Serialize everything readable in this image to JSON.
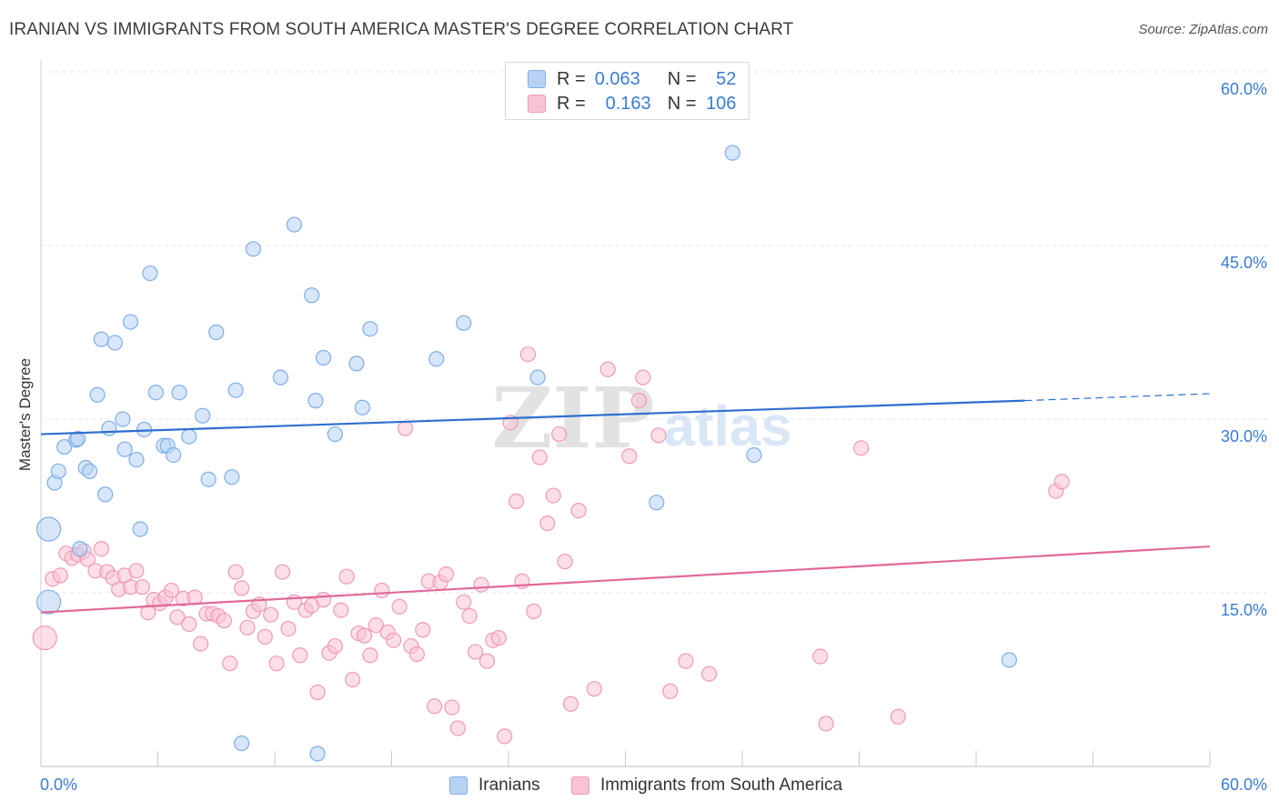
{
  "header": {
    "title": "IRANIAN VS IMMIGRANTS FROM SOUTH AMERICA MASTER'S DEGREE CORRELATION CHART",
    "source": "Source: ZipAtlas.com"
  },
  "watermark": {
    "zip": "ZIP",
    "atlas": "atlas"
  },
  "legend": {
    "series1": {
      "r_label": "R =",
      "r_value": "0.063",
      "n_label": "N =",
      "n_value": "52"
    },
    "series2": {
      "r_label": "R =",
      "r_value": "0.163",
      "n_label": "N =",
      "n_value": "106"
    }
  },
  "colors": {
    "blue_fill": "#b8d2f4",
    "blue_stroke": "#7eaee6",
    "blue_line": "#2f6fcf",
    "pink_fill": "#f9c3d4",
    "pink_stroke": "#ef9ab5",
    "pink_line": "#e0699a",
    "tick_text": "#3a7bd5",
    "grid": "#e3e3e3"
  },
  "chart_data": {
    "type": "scatter",
    "title": "IRANIAN VS IMMIGRANTS FROM SOUTH AMERICA MASTER'S DEGREE CORRELATION CHART",
    "xlabel": "",
    "ylabel": "Master's Degree",
    "xlim": [
      0,
      60
    ],
    "ylim": [
      0,
      60
    ],
    "x_tick_labels": [
      "0.0%",
      "60.0%"
    ],
    "y_tick_labels": [
      "15.0%",
      "30.0%",
      "45.0%",
      "60.0%"
    ],
    "y_ticks": [
      15,
      30,
      45,
      60
    ],
    "grid": true,
    "legend_position": "top-center",
    "series": [
      {
        "name": "Iranians",
        "R": 0.063,
        "N": 52,
        "trend": {
          "x": [
            0,
            50.5
          ],
          "y": [
            28.7,
            31.6
          ]
        },
        "trend_dashed": {
          "x": [
            50.5,
            60
          ],
          "y": [
            31.6,
            32.2
          ]
        },
        "points": [
          [
            0.4,
            14.2
          ],
          [
            0.4,
            20.5
          ],
          [
            0.7,
            24.5
          ],
          [
            0.9,
            25.5
          ],
          [
            1.2,
            27.6
          ],
          [
            1.8,
            28.2
          ],
          [
            1.9,
            28.3
          ],
          [
            2.3,
            25.8
          ],
          [
            2.5,
            25.5
          ],
          [
            2.9,
            32.1
          ],
          [
            3.1,
            36.9
          ],
          [
            3.3,
            23.5
          ],
          [
            3.5,
            29.2
          ],
          [
            3.8,
            36.6
          ],
          [
            4.2,
            30.0
          ],
          [
            4.3,
            27.4
          ],
          [
            4.6,
            38.4
          ],
          [
            4.9,
            26.5
          ],
          [
            5.1,
            20.5
          ],
          [
            5.3,
            29.1
          ],
          [
            5.6,
            42.6
          ],
          [
            5.9,
            32.3
          ],
          [
            6.3,
            27.7
          ],
          [
            6.5,
            27.7
          ],
          [
            6.8,
            26.9
          ],
          [
            7.1,
            32.3
          ],
          [
            7.6,
            28.5
          ],
          [
            8.3,
            30.3
          ],
          [
            8.6,
            24.8
          ],
          [
            9.0,
            37.5
          ],
          [
            9.8,
            25.0
          ],
          [
            10.0,
            32.5
          ],
          [
            10.3,
            2.0
          ],
          [
            10.9,
            44.7
          ],
          [
            12.3,
            33.6
          ],
          [
            13.0,
            46.8
          ],
          [
            13.9,
            40.7
          ],
          [
            14.1,
            31.6
          ],
          [
            14.2,
            1.1
          ],
          [
            14.5,
            35.3
          ],
          [
            15.1,
            28.7
          ],
          [
            16.2,
            34.8
          ],
          [
            16.5,
            31.0
          ],
          [
            16.9,
            37.8
          ],
          [
            20.3,
            35.2
          ],
          [
            21.7,
            38.3
          ],
          [
            25.5,
            33.6
          ],
          [
            31.6,
            22.8
          ],
          [
            35.5,
            53.0
          ],
          [
            36.6,
            26.9
          ],
          [
            49.7,
            9.2
          ],
          [
            2.0,
            18.8
          ]
        ]
      },
      {
        "name": "Immigrants from South America",
        "R": 0.163,
        "N": 106,
        "trend": {
          "x": [
            0,
            60
          ],
          "y": [
            13.3,
            19.0
          ]
        },
        "points": [
          [
            0.2,
            11.1
          ],
          [
            0.6,
            16.2
          ],
          [
            1.0,
            16.5
          ],
          [
            1.3,
            18.4
          ],
          [
            1.6,
            18.0
          ],
          [
            1.9,
            18.3
          ],
          [
            2.2,
            18.6
          ],
          [
            2.4,
            17.9
          ],
          [
            2.8,
            16.9
          ],
          [
            3.1,
            18.8
          ],
          [
            3.4,
            16.8
          ],
          [
            3.7,
            16.3
          ],
          [
            4.0,
            15.3
          ],
          [
            4.3,
            16.5
          ],
          [
            4.6,
            15.5
          ],
          [
            4.9,
            16.9
          ],
          [
            5.2,
            15.5
          ],
          [
            5.5,
            13.3
          ],
          [
            5.8,
            14.4
          ],
          [
            6.1,
            14.1
          ],
          [
            6.4,
            14.6
          ],
          [
            6.7,
            15.2
          ],
          [
            7.0,
            12.9
          ],
          [
            7.3,
            14.5
          ],
          [
            7.6,
            12.3
          ],
          [
            7.9,
            14.6
          ],
          [
            8.2,
            10.6
          ],
          [
            8.5,
            13.2
          ],
          [
            8.8,
            13.2
          ],
          [
            9.1,
            13.0
          ],
          [
            9.4,
            12.6
          ],
          [
            9.7,
            8.9
          ],
          [
            10.0,
            16.8
          ],
          [
            10.3,
            15.4
          ],
          [
            10.6,
            12.0
          ],
          [
            10.9,
            13.4
          ],
          [
            11.2,
            14.0
          ],
          [
            11.5,
            11.2
          ],
          [
            11.8,
            13.1
          ],
          [
            12.1,
            8.9
          ],
          [
            12.4,
            16.8
          ],
          [
            12.7,
            11.9
          ],
          [
            13.0,
            14.2
          ],
          [
            13.3,
            9.6
          ],
          [
            13.6,
            13.5
          ],
          [
            13.9,
            13.9
          ],
          [
            14.2,
            6.4
          ],
          [
            14.5,
            14.4
          ],
          [
            14.8,
            9.8
          ],
          [
            15.1,
            10.4
          ],
          [
            15.4,
            13.5
          ],
          [
            15.7,
            16.4
          ],
          [
            16.0,
            7.5
          ],
          [
            16.3,
            11.5
          ],
          [
            16.6,
            11.3
          ],
          [
            16.9,
            9.6
          ],
          [
            17.2,
            12.2
          ],
          [
            17.5,
            15.2
          ],
          [
            17.8,
            11.6
          ],
          [
            18.1,
            10.9
          ],
          [
            18.4,
            13.8
          ],
          [
            18.7,
            29.2
          ],
          [
            19.0,
            10.4
          ],
          [
            19.3,
            9.7
          ],
          [
            19.6,
            11.8
          ],
          [
            19.9,
            16.0
          ],
          [
            20.2,
            5.2
          ],
          [
            20.5,
            15.9
          ],
          [
            20.8,
            16.6
          ],
          [
            21.1,
            5.1
          ],
          [
            21.4,
            3.3
          ],
          [
            21.7,
            14.2
          ],
          [
            22.0,
            13.0
          ],
          [
            22.3,
            9.9
          ],
          [
            22.6,
            15.7
          ],
          [
            22.9,
            9.1
          ],
          [
            23.2,
            10.9
          ],
          [
            23.5,
            11.1
          ],
          [
            23.8,
            2.6
          ],
          [
            24.1,
            29.7
          ],
          [
            24.4,
            22.9
          ],
          [
            24.7,
            16.0
          ],
          [
            25.0,
            35.6
          ],
          [
            25.3,
            13.4
          ],
          [
            25.6,
            26.7
          ],
          [
            26.0,
            21.0
          ],
          [
            26.3,
            23.4
          ],
          [
            26.6,
            28.7
          ],
          [
            26.9,
            17.7
          ],
          [
            27.2,
            5.4
          ],
          [
            27.6,
            22.1
          ],
          [
            28.4,
            6.7
          ],
          [
            29.1,
            34.3
          ],
          [
            30.2,
            26.8
          ],
          [
            30.7,
            31.6
          ],
          [
            30.9,
            33.6
          ],
          [
            31.7,
            28.6
          ],
          [
            32.3,
            6.5
          ],
          [
            33.1,
            9.1
          ],
          [
            34.3,
            8.0
          ],
          [
            40.0,
            9.5
          ],
          [
            40.3,
            3.7
          ],
          [
            42.1,
            27.5
          ],
          [
            44.0,
            4.3
          ],
          [
            52.1,
            23.8
          ],
          [
            52.4,
            24.6
          ]
        ]
      }
    ]
  },
  "bottom_legend": {
    "item1": "Iranians",
    "item2": "Immigrants from South America"
  }
}
